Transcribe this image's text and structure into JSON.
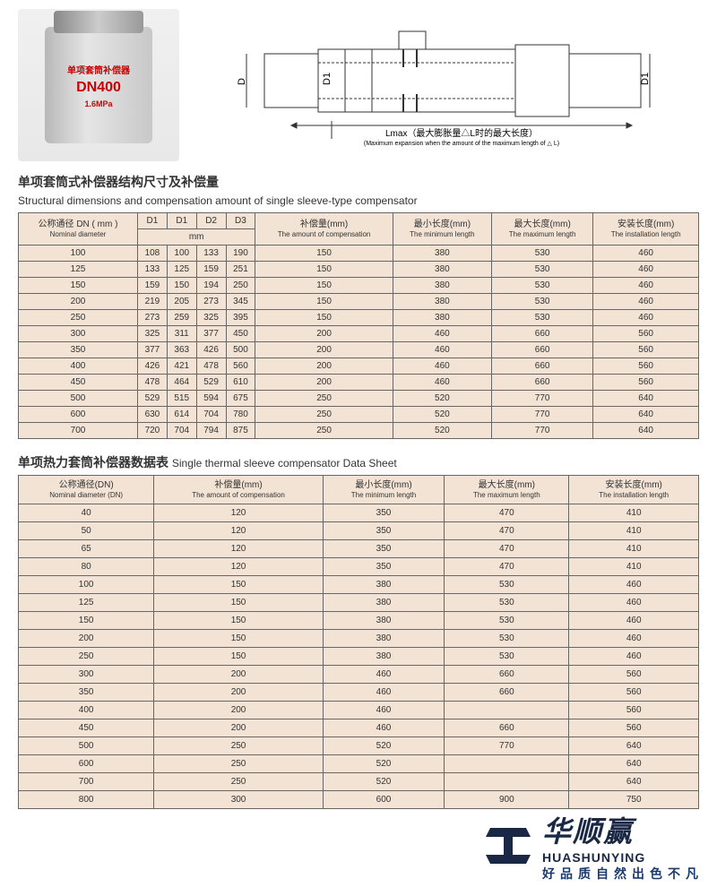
{
  "colors": {
    "table_bg": "#f2e3d4",
    "border": "#666666",
    "accent_red": "#cc0000",
    "logo_navy": "#1a2845",
    "slogan_blue": "#1a3a6e"
  },
  "product_photo": {
    "label_line1": "单项套筒补偿器",
    "label_line2": "DN400",
    "label_line3": "1.6MPa"
  },
  "diagram": {
    "labels": [
      "D",
      "D1",
      "D1",
      "D"
    ],
    "caption_cn": "Lmax（最大膨胀量△L时的最大长度）",
    "caption_en": "(Maximum expansion when the amount of the maximum length of △ L)"
  },
  "section1": {
    "title_cn": "单项套筒式补偿器结构尺寸及补偿量",
    "title_en": "Structural dimensions and compensation amount of single sleeve-type compensator",
    "columns": [
      {
        "cn": "公称通径 DN ( mm )",
        "en": "Nominal diameter"
      },
      {
        "cn": "D1",
        "en": ""
      },
      {
        "cn": "D1",
        "en": ""
      },
      {
        "cn": "D2",
        "en": ""
      },
      {
        "cn": "D3",
        "en": ""
      },
      {
        "cn": "补偿量(mm)",
        "en": "The amount of compensation"
      },
      {
        "cn": "最小长度(mm)",
        "en": "The minimum length"
      },
      {
        "cn": "最大长度(mm)",
        "en": "The maximum length"
      },
      {
        "cn": "安装长度(mm)",
        "en": "The installation length"
      }
    ],
    "mm_span_label": "mm",
    "rows": [
      [
        "100",
        "108",
        "100",
        "133",
        "190",
        "150",
        "380",
        "530",
        "460"
      ],
      [
        "125",
        "133",
        "125",
        "159",
        "251",
        "150",
        "380",
        "530",
        "460"
      ],
      [
        "150",
        "159",
        "150",
        "194",
        "250",
        "150",
        "380",
        "530",
        "460"
      ],
      [
        "200",
        "219",
        "205",
        "273",
        "345",
        "150",
        "380",
        "530",
        "460"
      ],
      [
        "250",
        "273",
        "259",
        "325",
        "395",
        "150",
        "380",
        "530",
        "460"
      ],
      [
        "300",
        "325",
        "311",
        "377",
        "450",
        "200",
        "460",
        "660",
        "560"
      ],
      [
        "350",
        "377",
        "363",
        "426",
        "500",
        "200",
        "460",
        "660",
        "560"
      ],
      [
        "400",
        "426",
        "421",
        "478",
        "560",
        "200",
        "460",
        "660",
        "560"
      ],
      [
        "450",
        "478",
        "464",
        "529",
        "610",
        "200",
        "460",
        "660",
        "560"
      ],
      [
        "500",
        "529",
        "515",
        "594",
        "675",
        "250",
        "520",
        "770",
        "640"
      ],
      [
        "600",
        "630",
        "614",
        "704",
        "780",
        "250",
        "520",
        "770",
        "640"
      ],
      [
        "700",
        "720",
        "704",
        "794",
        "875",
        "250",
        "520",
        "770",
        "640"
      ]
    ]
  },
  "section2": {
    "title_cn": "单项热力套筒补偿器数据表",
    "title_en": "Single thermal sleeve compensator Data Sheet",
    "columns": [
      {
        "cn": "公称通径(DN)",
        "en": "Nominal diameter (DN)"
      },
      {
        "cn": "补偿量(mm)",
        "en": "The amount of compensation"
      },
      {
        "cn": "最小长度(mm)",
        "en": "The minimum length"
      },
      {
        "cn": "最大长度(mm)",
        "en": "The maximum length"
      },
      {
        "cn": "安装长度(mm)",
        "en": "The installation length"
      }
    ],
    "rows": [
      [
        "40",
        "120",
        "350",
        "470",
        "410"
      ],
      [
        "50",
        "120",
        "350",
        "470",
        "410"
      ],
      [
        "65",
        "120",
        "350",
        "470",
        "410"
      ],
      [
        "80",
        "120",
        "350",
        "470",
        "410"
      ],
      [
        "100",
        "150",
        "380",
        "530",
        "460"
      ],
      [
        "125",
        "150",
        "380",
        "530",
        "460"
      ],
      [
        "150",
        "150",
        "380",
        "530",
        "460"
      ],
      [
        "200",
        "150",
        "380",
        "530",
        "460"
      ],
      [
        "250",
        "150",
        "380",
        "530",
        "460"
      ],
      [
        "300",
        "200",
        "460",
        "660",
        "560"
      ],
      [
        "350",
        "200",
        "460",
        "660",
        "560"
      ],
      [
        "400",
        "200",
        "460",
        "",
        "560"
      ],
      [
        "450",
        "200",
        "460",
        "660",
        "560"
      ],
      [
        "500",
        "250",
        "520",
        "770",
        "640"
      ],
      [
        "600",
        "250",
        "520",
        "",
        "640"
      ],
      [
        "700",
        "250",
        "520",
        "",
        "640"
      ],
      [
        "800",
        "300",
        "600",
        "900",
        "750"
      ]
    ]
  },
  "watermark": {
    "cn": "华顺赢",
    "en": "HUASHUNYING",
    "slogan": "好品质自然出色不凡"
  }
}
